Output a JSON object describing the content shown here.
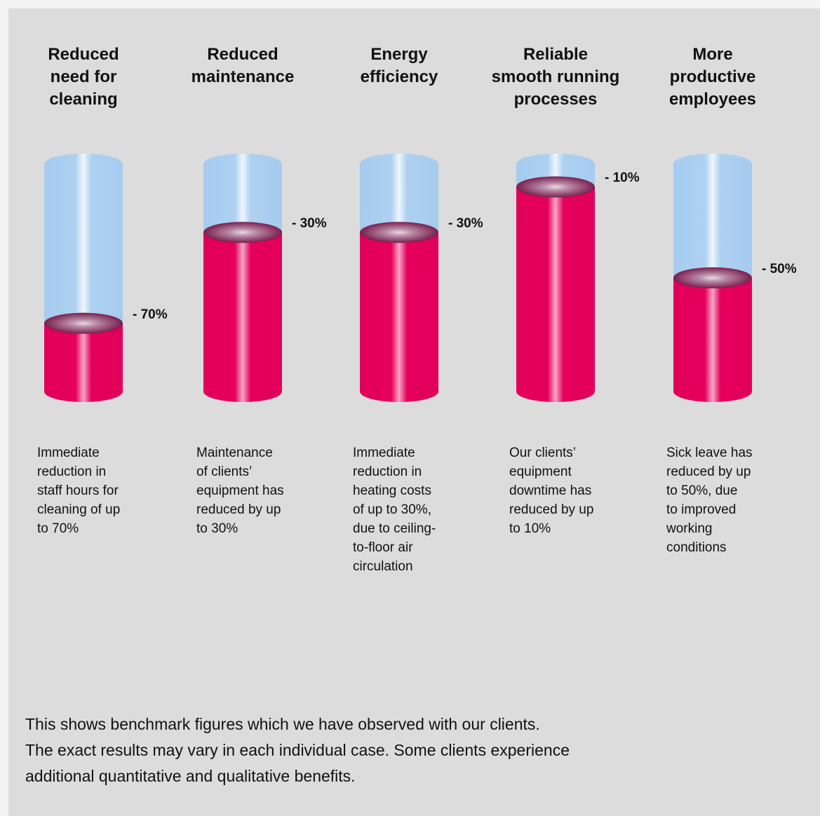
{
  "chart_data": {
    "type": "bar",
    "categories": [
      "Reduced\nneed for\ncleaning",
      "Reduced\nmaintenance",
      "Energy\nefficiency",
      "Reliable\nsmooth running\nprocesses",
      "More\nproductive\nemployees"
    ],
    "values": [
      70,
      30,
      30,
      10,
      50
    ],
    "value_labels": [
      "- 70%",
      "- 30%",
      "- 30%",
      "- 10%",
      "- 50%"
    ],
    "ylim": [
      0,
      100
    ],
    "descriptions": [
      "Immediate\nreduction in\nstaff hours for\ncleaning of up\nto 70%",
      "Maintenance\nof clients’\nequipment has\nreduced by up\nto 30%",
      "Immediate\nreduction in\nheating costs\nof up to 30%,\ndue to ceiling-\nto-floor air\ncirculation",
      "Our clients’\nequipment\ndowntime has\nreduced by up\nto 10%",
      "Sick leave has\nreduced by up\nto 50%, due\nto improved\nworking\nconditions"
    ],
    "colors": {
      "fill": "#e5005a",
      "empty": "#a9cdf0",
      "background": "#dcdcdc"
    }
  },
  "footnote": "This shows benchmark figures which we have observed with our clients.\nThe exact results may vary in each individual case. Some clients experience\nadditional quantitative and qualitative benefits."
}
